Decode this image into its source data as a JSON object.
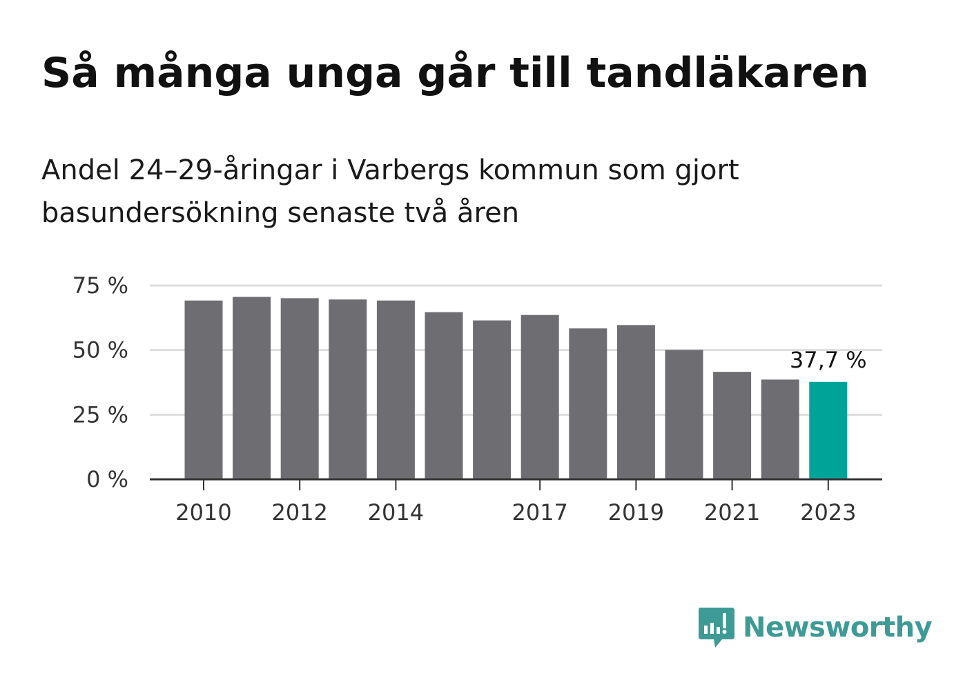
{
  "title": "Så många unga går till tandläkaren",
  "subtitle": "Andel 24–29-åringar i Varbergs kommun som gjort basundersökning senaste två åren",
  "brand": "Newsworthy",
  "colors": {
    "bar": "#6e6d72",
    "highlight": "#00a398",
    "grid": "#dddddd",
    "axis": "#333333",
    "brand": "#3d9a95"
  },
  "chart_data": {
    "type": "bar",
    "categories": [
      "2010",
      "2011",
      "2012",
      "2013",
      "2014",
      "2015",
      "2016",
      "2017",
      "2018",
      "2019",
      "2020",
      "2021",
      "2022",
      "2023"
    ],
    "values": [
      69.2,
      70.6,
      70.1,
      69.6,
      69.2,
      64.7,
      61.5,
      63.6,
      58.4,
      59.7,
      50.1,
      41.6,
      38.6,
      37.7
    ],
    "x_tick_labels": [
      "2010",
      "",
      "2012",
      "",
      "2014",
      "",
      "",
      "2017",
      "",
      "2019",
      "",
      "2021",
      "",
      "2023"
    ],
    "y_ticks": [
      0,
      25,
      50,
      75
    ],
    "y_tick_labels": [
      "0 %",
      "25 %",
      "50 %",
      "75 %"
    ],
    "ylim": [
      0,
      75
    ],
    "highlight_index": 13,
    "highlight_label": "37,7 %",
    "grid": true
  }
}
